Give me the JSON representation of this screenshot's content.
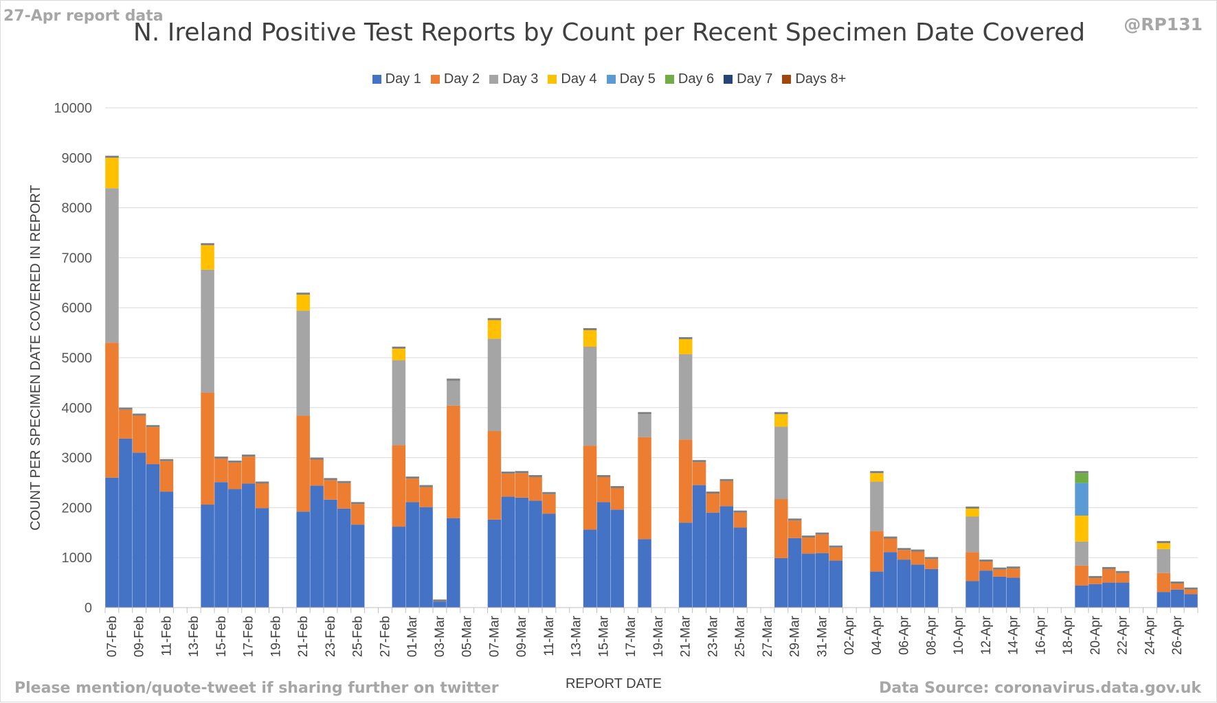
{
  "header": {
    "report_note": "27-Apr report data",
    "handle": "@RP131"
  },
  "footer": {
    "mention_note": "Please mention/quote-tweet if sharing further on twitter",
    "data_source": "Data Source: coronavirus.data.gov.uk"
  },
  "chart_data": {
    "type": "bar",
    "stacked": true,
    "title": "N. Ireland Positive Test Reports by Count per Recent Specimen Date Covered",
    "xlabel": "REPORT DATE",
    "ylabel": "COUNT PER SPECIMEN DATE COVERED IN REPORT",
    "ylim": [
      0,
      10000
    ],
    "yticks": [
      "0",
      "1000",
      "2000",
      "3000",
      "4000",
      "5000",
      "6000",
      "7000",
      "8000",
      "9000",
      "10000"
    ],
    "grid": true,
    "legend_position": "top",
    "categories": [
      "07-Feb",
      "08-Feb",
      "09-Feb",
      "10-Feb",
      "11-Feb",
      "12-Feb",
      "13-Feb",
      "14-Feb",
      "15-Feb",
      "16-Feb",
      "17-Feb",
      "18-Feb",
      "19-Feb",
      "20-Feb",
      "21-Feb",
      "22-Feb",
      "23-Feb",
      "24-Feb",
      "25-Feb",
      "26-Feb",
      "27-Feb",
      "28-Feb",
      "01-Mar",
      "02-Mar",
      "03-Mar",
      "04-Mar",
      "05-Mar",
      "06-Mar",
      "07-Mar",
      "08-Mar",
      "09-Mar",
      "10-Mar",
      "11-Mar",
      "12-Mar",
      "13-Mar",
      "14-Mar",
      "15-Mar",
      "16-Mar",
      "17-Mar",
      "18-Mar",
      "19-Mar",
      "20-Mar",
      "21-Mar",
      "22-Mar",
      "23-Mar",
      "24-Mar",
      "25-Mar",
      "26-Mar",
      "27-Mar",
      "28-Mar",
      "29-Mar",
      "30-Mar",
      "31-Mar",
      "01-Apr",
      "02-Apr",
      "03-Apr",
      "04-Apr",
      "05-Apr",
      "06-Apr",
      "07-Apr",
      "08-Apr",
      "09-Apr",
      "10-Apr",
      "11-Apr",
      "12-Apr",
      "13-Apr",
      "14-Apr",
      "15-Apr",
      "16-Apr",
      "17-Apr",
      "18-Apr",
      "19-Apr",
      "20-Apr",
      "21-Apr",
      "22-Apr",
      "23-Apr",
      "24-Apr",
      "25-Apr",
      "26-Apr",
      "27-Apr"
    ],
    "tick_labels": [
      "07-Feb",
      "09-Feb",
      "11-Feb",
      "13-Feb",
      "15-Feb",
      "17-Feb",
      "19-Feb",
      "21-Feb",
      "23-Feb",
      "25-Feb",
      "27-Feb",
      "01-Mar",
      "03-Mar",
      "05-Mar",
      "07-Mar",
      "09-Mar",
      "11-Mar",
      "13-Mar",
      "15-Mar",
      "17-Mar",
      "19-Mar",
      "21-Mar",
      "23-Mar",
      "25-Mar",
      "27-Mar",
      "29-Mar",
      "31-Mar",
      "02-Apr",
      "04-Apr",
      "06-Apr",
      "08-Apr",
      "10-Apr",
      "12-Apr",
      "14-Apr",
      "16-Apr",
      "18-Apr",
      "20-Apr",
      "22-Apr",
      "24-Apr",
      "26-Apr"
    ],
    "series": [
      {
        "name": "Day 1",
        "color": "#4472c4",
        "values": [
          2600,
          3380,
          3100,
          2870,
          2320,
          0,
          0,
          2060,
          2510,
          2370,
          2480,
          1990,
          0,
          0,
          1920,
          2440,
          2160,
          1980,
          1660,
          0,
          0,
          1620,
          2110,
          2010,
          120,
          1790,
          0,
          0,
          1760,
          2220,
          2200,
          2140,
          1880,
          0,
          0,
          1560,
          2110,
          1960,
          0,
          1370,
          0,
          0,
          1700,
          2450,
          1900,
          2030,
          1600,
          0,
          0,
          990,
          1390,
          1080,
          1090,
          940,
          0,
          0,
          720,
          1110,
          960,
          860,
          770,
          0,
          0,
          530,
          740,
          620,
          600,
          0,
          0,
          0,
          0,
          440,
          470,
          500,
          500,
          0,
          0,
          310,
          360,
          270
        ]
      },
      {
        "name": "Day 2",
        "color": "#ed7d31",
        "values": [
          2700,
          580,
          740,
          740,
          610,
          0,
          0,
          2240,
          470,
          530,
          540,
          490,
          0,
          0,
          1920,
          520,
          390,
          510,
          410,
          0,
          0,
          1630,
          470,
          400,
          0,
          2250,
          0,
          0,
          1770,
          460,
          490,
          470,
          390,
          0,
          0,
          1680,
          500,
          430,
          0,
          2040,
          0,
          0,
          1660,
          460,
          380,
          500,
          300,
          0,
          0,
          1180,
          350,
          320,
          370,
          260,
          0,
          0,
          810,
          270,
          190,
          260,
          200,
          0,
          0,
          580,
          180,
          140,
          180,
          0,
          0,
          0,
          0,
          400,
          120,
          270,
          190,
          0,
          0,
          380,
          120,
          90
        ]
      },
      {
        "name": "Day 3",
        "color": "#a5a5a5",
        "values": [
          3090,
          0,
          0,
          0,
          0,
          0,
          0,
          2460,
          0,
          0,
          0,
          0,
          0,
          0,
          2100,
          0,
          0,
          0,
          0,
          0,
          0,
          1700,
          0,
          0,
          0,
          500,
          0,
          0,
          1850,
          0,
          0,
          0,
          0,
          0,
          0,
          1980,
          0,
          0,
          0,
          460,
          0,
          0,
          1710,
          0,
          0,
          0,
          0,
          0,
          0,
          1450,
          0,
          0,
          0,
          0,
          0,
          0,
          990,
          0,
          0,
          0,
          0,
          0,
          0,
          710,
          0,
          0,
          0,
          0,
          0,
          0,
          0,
          480,
          0,
          0,
          0,
          0,
          0,
          480,
          0,
          0
        ]
      },
      {
        "name": "Day 4",
        "color": "#ffc000",
        "values": [
          610,
          0,
          0,
          0,
          0,
          0,
          0,
          490,
          0,
          0,
          0,
          0,
          0,
          0,
          320,
          0,
          0,
          0,
          0,
          0,
          0,
          230,
          0,
          0,
          0,
          0,
          0,
          0,
          370,
          0,
          0,
          0,
          0,
          0,
          0,
          330,
          0,
          0,
          0,
          0,
          0,
          0,
          300,
          0,
          0,
          0,
          0,
          0,
          0,
          250,
          0,
          0,
          0,
          0,
          0,
          0,
          170,
          0,
          0,
          0,
          0,
          0,
          0,
          160,
          0,
          0,
          0,
          0,
          0,
          0,
          0,
          520,
          0,
          0,
          0,
          0,
          0,
          120,
          0,
          0
        ]
      },
      {
        "name": "Day 5",
        "color": "#5b9bd5",
        "values": [
          0,
          0,
          0,
          0,
          0,
          0,
          0,
          0,
          0,
          0,
          0,
          0,
          0,
          0,
          0,
          0,
          0,
          0,
          0,
          0,
          0,
          0,
          0,
          0,
          0,
          0,
          0,
          0,
          0,
          0,
          0,
          0,
          0,
          0,
          0,
          0,
          0,
          0,
          0,
          0,
          0,
          0,
          0,
          0,
          0,
          0,
          0,
          0,
          0,
          0,
          0,
          0,
          0,
          0,
          0,
          0,
          0,
          0,
          0,
          0,
          0,
          0,
          0,
          0,
          0,
          0,
          0,
          0,
          0,
          0,
          0,
          650,
          0,
          0,
          0,
          0,
          0,
          0,
          0,
          0
        ]
      },
      {
        "name": "Day 6",
        "color": "#70ad47",
        "values": [
          0,
          0,
          0,
          0,
          0,
          0,
          0,
          0,
          0,
          0,
          0,
          0,
          0,
          0,
          0,
          0,
          0,
          0,
          0,
          0,
          0,
          0,
          0,
          0,
          0,
          0,
          0,
          0,
          0,
          0,
          0,
          0,
          0,
          0,
          0,
          0,
          0,
          0,
          0,
          0,
          0,
          0,
          0,
          0,
          0,
          0,
          0,
          0,
          0,
          0,
          0,
          0,
          0,
          0,
          0,
          0,
          0,
          0,
          0,
          0,
          0,
          0,
          0,
          0,
          0,
          0,
          0,
          0,
          0,
          0,
          0,
          200,
          0,
          0,
          0,
          0,
          0,
          0,
          0,
          0
        ]
      },
      {
        "name": "Day 7",
        "color": "#264478",
        "values": [
          0,
          0,
          0,
          0,
          0,
          0,
          0,
          0,
          0,
          0,
          0,
          0,
          0,
          0,
          0,
          0,
          0,
          0,
          0,
          0,
          0,
          0,
          0,
          0,
          0,
          0,
          0,
          0,
          0,
          0,
          0,
          0,
          0,
          0,
          0,
          0,
          0,
          0,
          0,
          0,
          0,
          0,
          0,
          0,
          0,
          0,
          0,
          0,
          0,
          0,
          0,
          0,
          0,
          0,
          0,
          0,
          0,
          0,
          0,
          0,
          0,
          0,
          0,
          0,
          0,
          0,
          0,
          0,
          0,
          0,
          0,
          0,
          0,
          0,
          0,
          0,
          0,
          0,
          0,
          0
        ]
      },
      {
        "name": "Days 8+",
        "color": "#9e480e",
        "values": [
          0,
          0,
          0,
          0,
          0,
          0,
          0,
          0,
          0,
          0,
          0,
          0,
          0,
          0,
          0,
          0,
          0,
          0,
          0,
          0,
          0,
          0,
          0,
          0,
          0,
          0,
          0,
          0,
          0,
          0,
          0,
          0,
          0,
          0,
          0,
          0,
          0,
          0,
          0,
          0,
          0,
          0,
          0,
          0,
          0,
          0,
          0,
          0,
          0,
          0,
          0,
          0,
          0,
          0,
          0,
          0,
          0,
          0,
          0,
          0,
          0,
          0,
          0,
          0,
          0,
          0,
          0,
          0,
          0,
          0,
          0,
          0,
          0,
          0,
          0,
          0,
          0,
          0,
          0,
          0
        ]
      }
    ]
  }
}
